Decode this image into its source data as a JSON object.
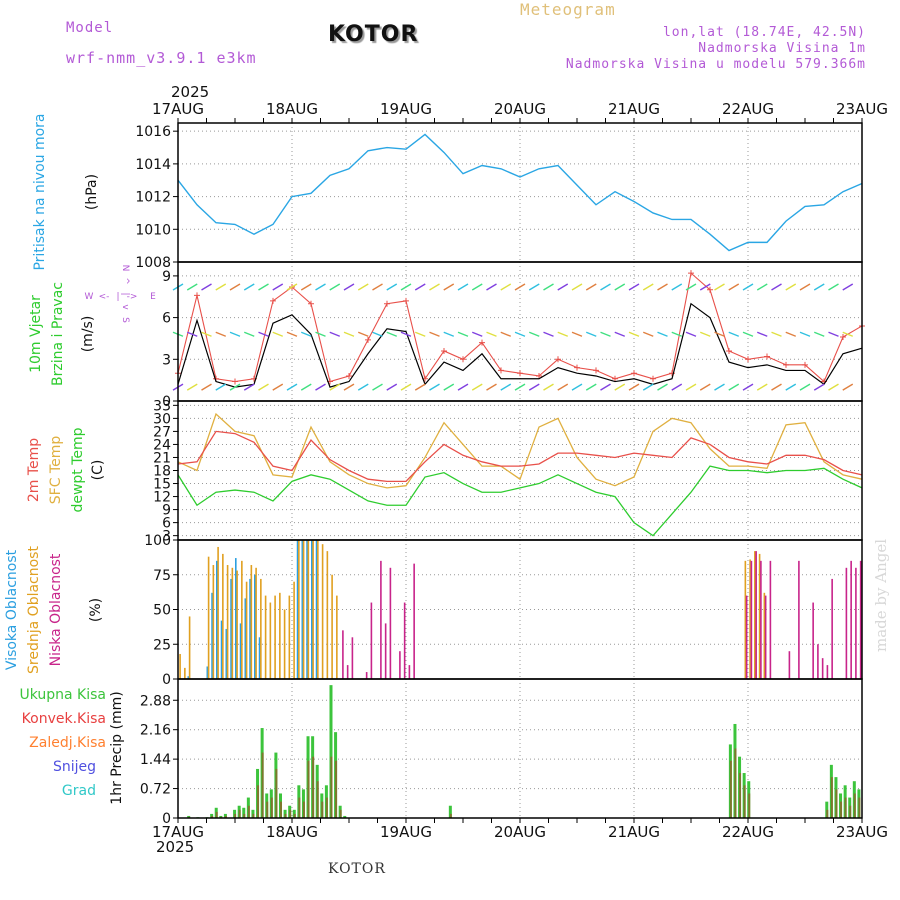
{
  "header": {
    "model_label": "Model",
    "model_name": "wrf-nmm_v3.9.1 e3km",
    "city": "KOTOR",
    "meteogram": "Meteogram",
    "lonlat": "lon,lat (18.74E, 42.5N)",
    "altitude": "Nadmorska Visina 1m",
    "model_altitude": "Nadmorska Visina u modelu 579.366m",
    "year_top": "2025",
    "year_bottom": "2025",
    "footer_city": "KOTOR",
    "watermark": "made by Angel"
  },
  "colors": {
    "pressure": "#2aa6e4",
    "temp2m": "#e8504a",
    "sfc": "#e0b040",
    "dew": "#2ecc2e",
    "high_cloud": "#2b9fe0",
    "mid_cloud": "#e0a020",
    "low_cloud": "#c8248a",
    "total_rain": "#3cc43c",
    "conv_rain": "#e84040",
    "frozen": "#ff8030",
    "snow": "#5050e0",
    "hail": "#30c8c8",
    "grid": "#999999"
  },
  "chart_data": [
    {
      "type": "line",
      "id": "pressure",
      "ylabel_side": "Pritisak na nivou mora",
      "ylabel": "(hPa)",
      "ylim": [
        1008,
        1016.5
      ],
      "yticks": [
        "1016",
        "1014",
        "1012",
        "1010",
        "1008"
      ],
      "x_days": [
        "17AUG",
        "18AUG",
        "19AUG",
        "20AUG",
        "21AUG",
        "22AUG",
        "23AUG"
      ],
      "x_hours": [
        0,
        4,
        8,
        12,
        16,
        20,
        24,
        28,
        32,
        36,
        40,
        44,
        48,
        52,
        56,
        60,
        64,
        68,
        72,
        76,
        80,
        84,
        88,
        92,
        96,
        100,
        104,
        108,
        112,
        116,
        120,
        124,
        128,
        132,
        136,
        140,
        144
      ],
      "values": [
        1013.0,
        1011.5,
        1010.4,
        1010.3,
        1009.7,
        1010.3,
        1012.0,
        1012.2,
        1013.3,
        1013.7,
        1014.8,
        1015.0,
        1014.9,
        1015.8,
        1014.7,
        1013.4,
        1013.9,
        1013.7,
        1013.2,
        1013.7,
        1013.9,
        1012.7,
        1011.5,
        1012.3,
        1011.7,
        1011.0,
        1010.6,
        1010.6,
        1009.7,
        1008.7,
        1009.2,
        1009.2,
        1010.5,
        1011.4,
        1011.5,
        1012.3,
        1012.8
      ]
    },
    {
      "type": "line",
      "id": "wind",
      "ylabel_side_top": "10m Vjetar",
      "ylabel_side_bottom": "Brzina i Pravac",
      "ylabel": "(m/s)",
      "compass": [
        "W",
        "<-",
        "|",
        "->",
        "E"
      ],
      "compass_vert": [
        "N",
        "^",
        "|",
        "v",
        "S"
      ],
      "ylim": [
        0,
        10
      ],
      "yticks": [
        "9",
        "6",
        "3",
        "0"
      ],
      "series": [
        {
          "name": "speed",
          "values": [
            1.2,
            5.8,
            1.4,
            1.0,
            1.2,
            5.6,
            6.2,
            4.8,
            1.0,
            1.4,
            3.4,
            5.2,
            5.0,
            1.2,
            2.8,
            2.2,
            3.4,
            1.6,
            1.6,
            1.6,
            2.4,
            2.0,
            1.8,
            1.4,
            1.6,
            1.2,
            1.6,
            7.0,
            6.0,
            2.8,
            2.4,
            2.6,
            2.2,
            2.2,
            1.2,
            3.4,
            3.8
          ]
        },
        {
          "name": "gust",
          "values": [
            2.0,
            7.6,
            1.6,
            1.4,
            1.6,
            7.2,
            8.2,
            7.0,
            1.4,
            1.8,
            4.4,
            7.0,
            7.2,
            1.6,
            3.6,
            3.0,
            4.2,
            2.2,
            2.0,
            1.8,
            3.0,
            2.4,
            2.2,
            1.6,
            2.0,
            1.6,
            2.0,
            9.2,
            8.0,
            3.6,
            3.0,
            3.2,
            2.6,
            2.6,
            1.4,
            4.6,
            5.4
          ]
        }
      ]
    },
    {
      "type": "line",
      "id": "temperature",
      "ylabel_side": [
        "2m Temp",
        "SFC Temp",
        "dewpt Temp"
      ],
      "ylabel": "(C)",
      "ylim": [
        2,
        34
      ],
      "yticks": [
        "33",
        "30",
        "27",
        "24",
        "21",
        "18",
        "15",
        "12",
        "9",
        "6",
        "3"
      ],
      "series": [
        {
          "name": "2m Temp",
          "values": [
            19.5,
            20.0,
            27.0,
            26.5,
            24.5,
            19.0,
            18.0,
            25.0,
            20.5,
            18.0,
            16.0,
            15.5,
            15.5,
            20.0,
            24.0,
            21.5,
            20.0,
            19.0,
            19.0,
            19.5,
            22.0,
            22.0,
            21.5,
            21.0,
            22.0,
            21.5,
            21.0,
            25.5,
            24.0,
            21.0,
            20.0,
            19.5,
            21.5,
            21.5,
            20.5,
            18.0,
            17.0
          ]
        },
        {
          "name": "SFC Temp",
          "values": [
            20.0,
            18.0,
            31.0,
            27.0,
            26.0,
            17.0,
            16.5,
            28.0,
            20.0,
            17.0,
            15.0,
            14.0,
            14.5,
            21.0,
            29.0,
            24.0,
            19.0,
            19.0,
            16.0,
            28.0,
            30.0,
            21.0,
            16.0,
            14.5,
            16.5,
            27.0,
            30.0,
            29.0,
            23.0,
            19.0,
            19.0,
            18.5,
            28.5,
            29.0,
            20.0,
            17.0,
            16.0
          ]
        },
        {
          "name": "dewpt Temp",
          "values": [
            17.0,
            10.0,
            13.0,
            13.5,
            13.0,
            11.0,
            15.5,
            17.0,
            16.0,
            13.5,
            11.0,
            10.0,
            10.0,
            16.5,
            17.5,
            15.0,
            13.0,
            13.0,
            14.0,
            15.0,
            17.0,
            15.0,
            13.0,
            12.0,
            6.0,
            3.0,
            8.0,
            13.0,
            19.0,
            18.0,
            18.0,
            17.5,
            18.0,
            18.0,
            18.5,
            16.0,
            14.0
          ]
        }
      ]
    },
    {
      "type": "bar",
      "id": "clouds",
      "ylabel_side": [
        "Visoka Oblacnost",
        "Srednja Oblacnost",
        "Niska Oblacnost"
      ],
      "ylabel": "(%)",
      "ylim": [
        0,
        100
      ],
      "yticks": [
        "100",
        "75",
        "50",
        "25",
        "0"
      ],
      "series": [
        {
          "name": "high",
          "values": [
            0,
            0,
            2,
            0,
            0,
            0,
            9,
            62,
            85,
            42,
            36,
            72,
            87,
            40,
            58,
            72,
            75,
            30,
            0,
            0,
            0,
            0,
            0,
            0,
            0,
            100,
            100,
            100,
            100,
            100,
            0,
            0,
            0,
            0,
            0,
            0,
            0,
            0,
            0,
            0,
            0,
            0,
            0,
            0,
            0,
            0,
            0,
            0,
            0,
            0,
            0,
            0,
            0,
            0,
            0,
            0,
            0,
            0,
            0,
            0,
            0,
            0,
            0,
            0,
            0,
            0,
            0,
            0,
            0,
            0,
            0,
            0,
            0,
            0,
            0,
            0,
            0,
            0,
            0,
            0,
            0,
            0,
            0,
            0,
            0,
            0,
            0,
            0,
            0,
            0,
            0,
            0,
            0,
            0,
            0,
            0,
            0,
            0,
            0,
            0,
            0,
            0,
            0,
            0,
            0,
            0,
            0,
            0,
            0,
            0,
            0,
            0,
            0,
            0,
            0,
            0,
            0,
            0,
            0,
            0,
            0,
            0,
            0,
            0,
            0,
            0,
            0,
            0,
            0,
            0,
            0,
            0,
            0,
            0,
            0,
            0,
            0,
            0,
            0,
            0,
            0,
            0,
            0,
            0
          ]
        },
        {
          "name": "mid",
          "values": [
            18,
            8,
            45,
            0,
            0,
            0,
            88,
            82,
            95,
            90,
            82,
            80,
            78,
            85,
            70,
            82,
            80,
            72,
            60,
            55,
            60,
            62,
            50,
            60,
            70,
            100,
            100,
            100,
            100,
            100,
            97,
            92,
            75,
            60,
            0,
            0,
            0,
            0,
            0,
            0,
            0,
            0,
            0,
            0,
            0,
            0,
            0,
            0,
            0,
            0,
            0,
            0,
            0,
            0,
            0,
            0,
            0,
            0,
            0,
            0,
            0,
            0,
            0,
            0,
            0,
            0,
            0,
            0,
            0,
            0,
            0,
            0,
            0,
            0,
            0,
            0,
            0,
            0,
            0,
            0,
            0,
            0,
            0,
            0,
            0,
            0,
            0,
            0,
            0,
            0,
            0,
            0,
            0,
            0,
            0,
            0,
            0,
            0,
            0,
            0,
            0,
            0,
            0,
            0,
            0,
            0,
            0,
            0,
            0,
            0,
            0,
            0,
            0,
            0,
            0,
            0,
            0,
            0,
            0,
            85,
            86,
            92,
            90,
            62,
            0,
            0,
            0,
            0,
            0,
            0,
            0,
            0,
            0,
            0,
            0,
            0,
            0,
            0,
            0,
            0,
            0,
            0,
            0,
            0
          ]
        },
        {
          "name": "low",
          "values": [
            0,
            0,
            0,
            0,
            0,
            0,
            0,
            0,
            0,
            0,
            0,
            0,
            0,
            0,
            0,
            0,
            0,
            0,
            0,
            0,
            0,
            0,
            0,
            0,
            0,
            0,
            0,
            0,
            0,
            0,
            0,
            0,
            0,
            0,
            35,
            10,
            30,
            0,
            0,
            5,
            55,
            0,
            85,
            40,
            80,
            0,
            20,
            55,
            10,
            83,
            0,
            0,
            0,
            0,
            0,
            0,
            0,
            0,
            0,
            0,
            0,
            0,
            0,
            0,
            0,
            0,
            0,
            0,
            0,
            0,
            0,
            0,
            0,
            0,
            0,
            0,
            0,
            0,
            0,
            0,
            0,
            0,
            0,
            0,
            0,
            0,
            0,
            0,
            0,
            0,
            0,
            0,
            0,
            0,
            0,
            0,
            0,
            0,
            0,
            0,
            0,
            0,
            0,
            0,
            0,
            0,
            0,
            0,
            0,
            0,
            0,
            0,
            0,
            0,
            0,
            0,
            0,
            0,
            0,
            60,
            85,
            92,
            85,
            60,
            85,
            0,
            0,
            0,
            20,
            0,
            85,
            0,
            0,
            55,
            25,
            15,
            10,
            72,
            0,
            0,
            80,
            85,
            80,
            85
          ]
        }
      ]
    },
    {
      "type": "bar",
      "id": "precip",
      "legend": [
        "Ukupna Kisa",
        "Konvek.Kisa",
        "Zaledj.Kisa",
        "Snijeg",
        "Grad"
      ],
      "ylabel": "1hr Precip (mm)",
      "ylim": [
        0,
        3.4
      ],
      "yticks": [
        "2.88",
        "2.16",
        "1.44",
        "0.72",
        "0"
      ],
      "series": [
        {
          "name": "total",
          "values": [
            0,
            0,
            0.05,
            0,
            0.02,
            0,
            0.02,
            0.1,
            0.25,
            0.05,
            0.1,
            0,
            0.2,
            0.3,
            0.25,
            0.5,
            0.2,
            1.2,
            2.2,
            0.6,
            0.7,
            1.6,
            0.6,
            0.2,
            0.3,
            0.2,
            0.8,
            0.7,
            2.0,
            2.0,
            1.3,
            0.6,
            0.8,
            3.25,
            2.1,
            0.3,
            0.05,
            0,
            0,
            0,
            0,
            0,
            0,
            0,
            0,
            0,
            0,
            0,
            0,
            0,
            0,
            0,
            0,
            0,
            0,
            0,
            0,
            0,
            0,
            0.3,
            0,
            0,
            0,
            0,
            0,
            0,
            0,
            0,
            0,
            0,
            0,
            0,
            0,
            0,
            0,
            0,
            0,
            0,
            0,
            0,
            0,
            0,
            0,
            0,
            0,
            0,
            0,
            0,
            0,
            0,
            0,
            0,
            0,
            0,
            0,
            0,
            0,
            0,
            0,
            0,
            0,
            0,
            0,
            0,
            0,
            0,
            0,
            0,
            0,
            0,
            0,
            0,
            0,
            0,
            0,
            0,
            0,
            0,
            0,
            0,
            1.8,
            2.3,
            1.5,
            1.1,
            0.9,
            0,
            0,
            0,
            0,
            0,
            0,
            0,
            0,
            0,
            0,
            0,
            0,
            0,
            0,
            0,
            0,
            0.4,
            1.3,
            1.0,
            0.6,
            0.8,
            0.5,
            0.9,
            0.7
          ]
        },
        {
          "name": "conv",
          "values": [
            0,
            0,
            0.03,
            0,
            0.01,
            0,
            0.01,
            0.05,
            0.15,
            0.03,
            0.05,
            0,
            0.1,
            0.2,
            0.1,
            0.3,
            0.1,
            0.8,
            1.6,
            0.4,
            0.5,
            1.2,
            0.4,
            0.1,
            0.2,
            0.1,
            0.5,
            0.4,
            1.4,
            1.5,
            0.9,
            0.4,
            0.5,
            1.5,
            1.4,
            0.2,
            0.02,
            0,
            0,
            0,
            0,
            0,
            0,
            0,
            0,
            0,
            0,
            0,
            0,
            0,
            0,
            0,
            0,
            0,
            0,
            0,
            0,
            0,
            0,
            0.1,
            0,
            0,
            0,
            0,
            0,
            0,
            0,
            0,
            0,
            0,
            0,
            0,
            0,
            0,
            0,
            0,
            0,
            0,
            0,
            0,
            0,
            0,
            0,
            0,
            0,
            0,
            0,
            0,
            0,
            0,
            0,
            0,
            0,
            0,
            0,
            0,
            0,
            0,
            0,
            0,
            0,
            0,
            0,
            0,
            0,
            0,
            0,
            0,
            0,
            0,
            0,
            0,
            0,
            0,
            0,
            0,
            0,
            0,
            0,
            0,
            1.4,
            1.7,
            1.1,
            0.8,
            0.6,
            0,
            0,
            0,
            0,
            0,
            0,
            0,
            0,
            0,
            0,
            0,
            0,
            0,
            0,
            0,
            0,
            0.2,
            1.0,
            0.7,
            0.4,
            0.5,
            0.3,
            0.6,
            0.5
          ]
        }
      ]
    }
  ]
}
